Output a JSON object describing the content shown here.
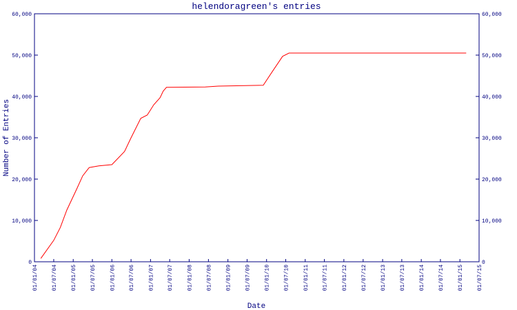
{
  "chart_data": {
    "type": "line",
    "title": "helendoragreen's entries",
    "x_label": "Date",
    "y_label": "Number of Entries",
    "x": [
      "2004-03-01",
      "2004-07-01",
      "2004-09-01",
      "2004-11-01",
      "2005-02-01",
      "2005-04-01",
      "2005-06-01",
      "2005-09-01",
      "2006-01-01",
      "2006-05-01",
      "2006-07-01",
      "2006-10-01",
      "2006-12-01",
      "2007-02-01",
      "2007-04-01",
      "2007-05-01",
      "2007-06-01",
      "2008-06-01",
      "2008-10-01",
      "2009-12-01",
      "2010-03-01",
      "2010-06-01",
      "2010-08-01",
      "2015-03-01"
    ],
    "series": [
      {
        "name": "entries",
        "color": "#ff0000",
        "values": [
          800,
          5200,
          8300,
          12500,
          17500,
          20800,
          22800,
          23200,
          23500,
          26700,
          30000,
          34700,
          35500,
          38000,
          39700,
          41300,
          42200,
          42300,
          42500,
          42700,
          46200,
          49700,
          50500,
          50500
        ]
      }
    ],
    "xlim": [
      "2004-01-01",
      "2015-07-01"
    ],
    "xticks": [
      {
        "value": "2004-01-01",
        "label": "01/01/04"
      },
      {
        "value": "2004-07-01",
        "label": "01/07/04"
      },
      {
        "value": "2005-01-01",
        "label": "01/01/05"
      },
      {
        "value": "2005-07-01",
        "label": "01/07/05"
      },
      {
        "value": "2006-01-01",
        "label": "01/01/06"
      },
      {
        "value": "2006-07-01",
        "label": "01/07/06"
      },
      {
        "value": "2007-01-01",
        "label": "01/01/07"
      },
      {
        "value": "2007-07-01",
        "label": "01/07/07"
      },
      {
        "value": "2008-01-01",
        "label": "01/01/08"
      },
      {
        "value": "2008-07-01",
        "label": "01/07/08"
      },
      {
        "value": "2009-01-01",
        "label": "01/01/09"
      },
      {
        "value": "2009-07-01",
        "label": "01/07/09"
      },
      {
        "value": "2010-01-01",
        "label": "01/01/10"
      },
      {
        "value": "2010-07-01",
        "label": "01/07/10"
      },
      {
        "value": "2011-01-01",
        "label": "01/01/11"
      },
      {
        "value": "2011-07-01",
        "label": "01/07/11"
      },
      {
        "value": "2012-01-01",
        "label": "01/01/12"
      },
      {
        "value": "2012-07-01",
        "label": "01/07/12"
      },
      {
        "value": "2013-01-01",
        "label": "01/01/13"
      },
      {
        "value": "2013-07-01",
        "label": "01/07/13"
      },
      {
        "value": "2014-01-01",
        "label": "01/01/14"
      },
      {
        "value": "2014-07-01",
        "label": "01/07/14"
      },
      {
        "value": "2015-01-01",
        "label": "01/01/15"
      },
      {
        "value": "2015-07-01",
        "label": "01/07/15"
      }
    ],
    "ylim": [
      0,
      60000
    ],
    "yticks": [
      0,
      {
        "value": 10000,
        "label": "10,000"
      },
      {
        "value": 20000,
        "label": "20,000"
      },
      {
        "value": 30000,
        "label": "30,000"
      },
      {
        "value": 40000,
        "label": "40,000"
      },
      {
        "value": 50000,
        "label": "50,000"
      },
      {
        "value": 60000,
        "label": "60,000"
      }
    ],
    "y2lim": [
      0,
      60000
    ],
    "y2ticks": [
      0,
      {
        "value": 10000,
        "label": "10,000"
      },
      {
        "value": 20000,
        "label": "20,000"
      },
      {
        "value": 30000,
        "label": "30,000"
      },
      {
        "value": 40000,
        "label": "40,000"
      },
      {
        "value": 50000,
        "label": "50,000"
      },
      {
        "value": 60000,
        "label": "60,000"
      }
    ],
    "axis_color": "#000080"
  }
}
